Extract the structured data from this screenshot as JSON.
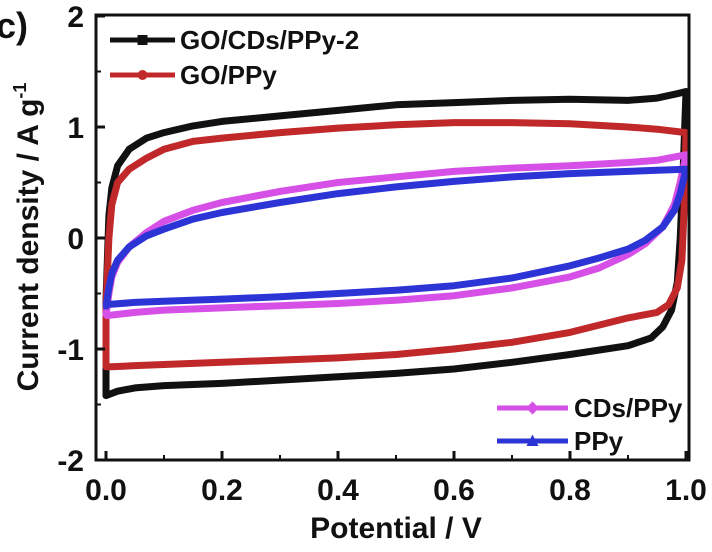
{
  "panel_label": "c)",
  "chart_data": {
    "type": "line",
    "title": "",
    "xlabel": "Potential / V",
    "ylabel_main": "Current density / A g",
    "ylabel_sup": "-1",
    "xlim": [
      0.0,
      1.0
    ],
    "ylim": [
      -2,
      2
    ],
    "x_ticks": [
      "0.0",
      "0.2",
      "0.4",
      "0.6",
      "0.8",
      "1.0"
    ],
    "y_ticks": [
      "2",
      "1",
      "0",
      "-1",
      "-2"
    ],
    "grid": false,
    "legend_top": [
      "GO/CDs/PPy-2",
      "GO/PPy"
    ],
    "legend_bottom": [
      "CDs/PPy",
      "PPy"
    ],
    "series": [
      {
        "name": "GO/CDs/PPy-2",
        "color": "#111111",
        "marker": "square",
        "forward": [
          [
            0.0,
            -0.55
          ],
          [
            0.005,
            0.2
          ],
          [
            0.01,
            0.45
          ],
          [
            0.02,
            0.65
          ],
          [
            0.04,
            0.8
          ],
          [
            0.07,
            0.9
          ],
          [
            0.1,
            0.95
          ],
          [
            0.15,
            1.01
          ],
          [
            0.2,
            1.05
          ],
          [
            0.3,
            1.1
          ],
          [
            0.4,
            1.15
          ],
          [
            0.5,
            1.2
          ],
          [
            0.6,
            1.22
          ],
          [
            0.7,
            1.24
          ],
          [
            0.8,
            1.25
          ],
          [
            0.9,
            1.24
          ],
          [
            0.95,
            1.26
          ],
          [
            0.985,
            1.3
          ],
          [
            1.0,
            1.32
          ]
        ],
        "reverse": [
          [
            1.0,
            1.32
          ],
          [
            0.995,
            0.6
          ],
          [
            0.99,
            0.0
          ],
          [
            0.985,
            -0.4
          ],
          [
            0.975,
            -0.65
          ],
          [
            0.96,
            -0.8
          ],
          [
            0.94,
            -0.9
          ],
          [
            0.9,
            -0.97
          ],
          [
            0.8,
            -1.05
          ],
          [
            0.7,
            -1.12
          ],
          [
            0.6,
            -1.18
          ],
          [
            0.5,
            -1.22
          ],
          [
            0.4,
            -1.25
          ],
          [
            0.3,
            -1.28
          ],
          [
            0.2,
            -1.31
          ],
          [
            0.1,
            -1.33
          ],
          [
            0.05,
            -1.35
          ],
          [
            0.02,
            -1.38
          ],
          [
            0.005,
            -1.41
          ],
          [
            0.0,
            -1.42
          ],
          [
            0.0,
            -0.55
          ]
        ]
      },
      {
        "name": "GO/PPy",
        "color": "#c0282a",
        "marker": "circle",
        "forward": [
          [
            0.0,
            -0.62
          ],
          [
            0.005,
            0.0
          ],
          [
            0.01,
            0.3
          ],
          [
            0.02,
            0.5
          ],
          [
            0.04,
            0.62
          ],
          [
            0.07,
            0.72
          ],
          [
            0.1,
            0.8
          ],
          [
            0.15,
            0.87
          ],
          [
            0.2,
            0.9
          ],
          [
            0.3,
            0.95
          ],
          [
            0.4,
            0.99
          ],
          [
            0.5,
            1.02
          ],
          [
            0.6,
            1.04
          ],
          [
            0.7,
            1.04
          ],
          [
            0.8,
            1.03
          ],
          [
            0.9,
            1.0
          ],
          [
            0.95,
            0.98
          ],
          [
            1.0,
            0.95
          ]
        ],
        "reverse": [
          [
            1.0,
            0.95
          ],
          [
            0.997,
            0.3
          ],
          [
            0.993,
            -0.2
          ],
          [
            0.985,
            -0.45
          ],
          [
            0.97,
            -0.6
          ],
          [
            0.95,
            -0.67
          ],
          [
            0.9,
            -0.72
          ],
          [
            0.8,
            -0.85
          ],
          [
            0.7,
            -0.94
          ],
          [
            0.6,
            -1.0
          ],
          [
            0.5,
            -1.05
          ],
          [
            0.4,
            -1.08
          ],
          [
            0.3,
            -1.1
          ],
          [
            0.2,
            -1.12
          ],
          [
            0.1,
            -1.14
          ],
          [
            0.05,
            -1.15
          ],
          [
            0.01,
            -1.16
          ],
          [
            0.0,
            -1.16
          ],
          [
            0.0,
            -0.62
          ]
        ]
      },
      {
        "name": "CDs/PPy",
        "color": "#d64fe6",
        "marker": "diamond",
        "forward": [
          [
            0.0,
            -0.7
          ],
          [
            0.005,
            -0.5
          ],
          [
            0.01,
            -0.35
          ],
          [
            0.02,
            -0.22
          ],
          [
            0.04,
            -0.08
          ],
          [
            0.07,
            0.05
          ],
          [
            0.1,
            0.15
          ],
          [
            0.15,
            0.25
          ],
          [
            0.2,
            0.32
          ],
          [
            0.3,
            0.42
          ],
          [
            0.4,
            0.5
          ],
          [
            0.5,
            0.55
          ],
          [
            0.6,
            0.6
          ],
          [
            0.7,
            0.63
          ],
          [
            0.8,
            0.65
          ],
          [
            0.9,
            0.68
          ],
          [
            0.95,
            0.7
          ],
          [
            1.0,
            0.75
          ]
        ],
        "reverse": [
          [
            1.0,
            0.75
          ],
          [
            0.99,
            0.5
          ],
          [
            0.98,
            0.3
          ],
          [
            0.96,
            0.1
          ],
          [
            0.93,
            -0.05
          ],
          [
            0.9,
            -0.15
          ],
          [
            0.85,
            -0.27
          ],
          [
            0.8,
            -0.35
          ],
          [
            0.7,
            -0.45
          ],
          [
            0.6,
            -0.52
          ],
          [
            0.5,
            -0.56
          ],
          [
            0.4,
            -0.59
          ],
          [
            0.3,
            -0.61
          ],
          [
            0.2,
            -0.63
          ],
          [
            0.1,
            -0.65
          ],
          [
            0.05,
            -0.67
          ],
          [
            0.0,
            -0.7
          ]
        ]
      },
      {
        "name": "PPy",
        "color": "#2c34d6",
        "marker": "triangle",
        "forward": [
          [
            0.0,
            -0.62
          ],
          [
            0.005,
            -0.45
          ],
          [
            0.01,
            -0.32
          ],
          [
            0.02,
            -0.2
          ],
          [
            0.04,
            -0.08
          ],
          [
            0.07,
            0.02
          ],
          [
            0.1,
            0.08
          ],
          [
            0.15,
            0.17
          ],
          [
            0.2,
            0.23
          ],
          [
            0.3,
            0.32
          ],
          [
            0.4,
            0.4
          ],
          [
            0.5,
            0.46
          ],
          [
            0.6,
            0.51
          ],
          [
            0.7,
            0.55
          ],
          [
            0.8,
            0.58
          ],
          [
            0.9,
            0.6
          ],
          [
            0.95,
            0.61
          ],
          [
            1.0,
            0.62
          ]
        ],
        "reverse": [
          [
            1.0,
            0.62
          ],
          [
            0.99,
            0.4
          ],
          [
            0.98,
            0.25
          ],
          [
            0.96,
            0.1
          ],
          [
            0.93,
            -0.02
          ],
          [
            0.9,
            -0.1
          ],
          [
            0.85,
            -0.18
          ],
          [
            0.8,
            -0.25
          ],
          [
            0.7,
            -0.36
          ],
          [
            0.6,
            -0.43
          ],
          [
            0.5,
            -0.47
          ],
          [
            0.4,
            -0.5
          ],
          [
            0.3,
            -0.53
          ],
          [
            0.2,
            -0.55
          ],
          [
            0.1,
            -0.57
          ],
          [
            0.05,
            -0.58
          ],
          [
            0.0,
            -0.6
          ]
        ]
      }
    ]
  }
}
